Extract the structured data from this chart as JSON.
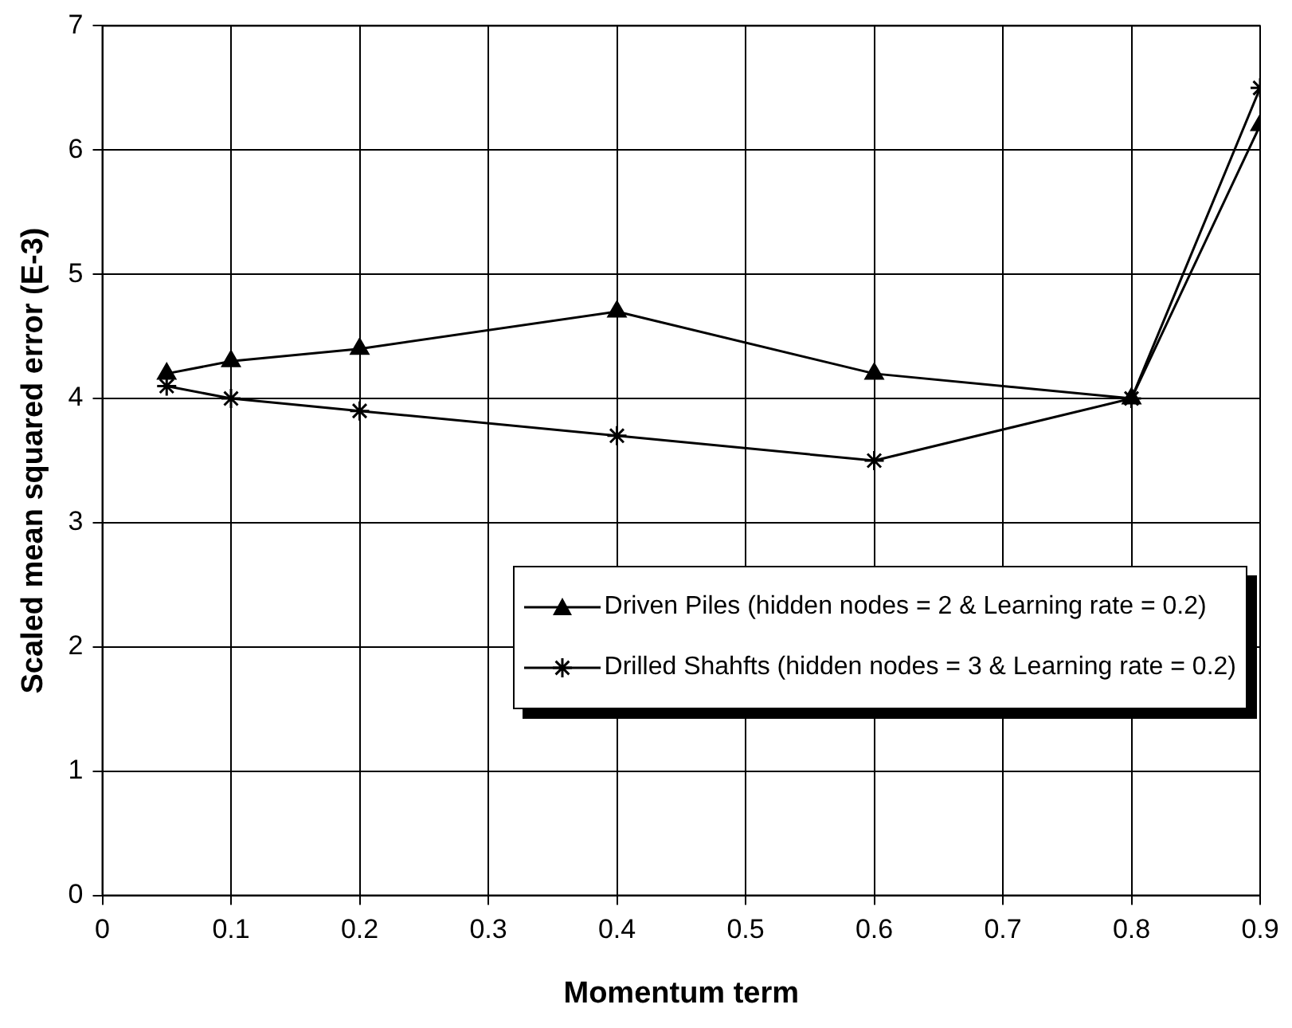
{
  "chart_data": {
    "type": "line",
    "xlabel": "Momentum term",
    "ylabel": "Scaled mean squared error (E-3)",
    "x": [
      0.05,
      0.1,
      0.2,
      0.4,
      0.6,
      0.8,
      0.9
    ],
    "series": [
      {
        "name": "Driven Piles (hidden nodes = 2 & Learning rate = 0.2)",
        "color": "#000000",
        "marker": "triangle",
        "values": [
          4.2,
          4.3,
          4.4,
          4.7,
          4.2,
          4.0,
          6.2
        ]
      },
      {
        "name": "Drilled Shahfts (hidden nodes = 3 & Learning rate = 0.2)",
        "color": "#000000",
        "marker": "cross",
        "values": [
          4.1,
          4.0,
          3.9,
          3.7,
          3.5,
          4.0,
          6.5
        ]
      }
    ],
    "xlim": [
      0,
      0.9
    ],
    "xticks": [
      0,
      0.1,
      0.2,
      0.3,
      0.4,
      0.5,
      0.6,
      0.7,
      0.8,
      0.9
    ],
    "ylim": [
      0,
      7
    ],
    "yticks": [
      0,
      1,
      2,
      3,
      4,
      5,
      6,
      7
    ],
    "grid": true,
    "legend": "right",
    "line_style": "solid"
  }
}
